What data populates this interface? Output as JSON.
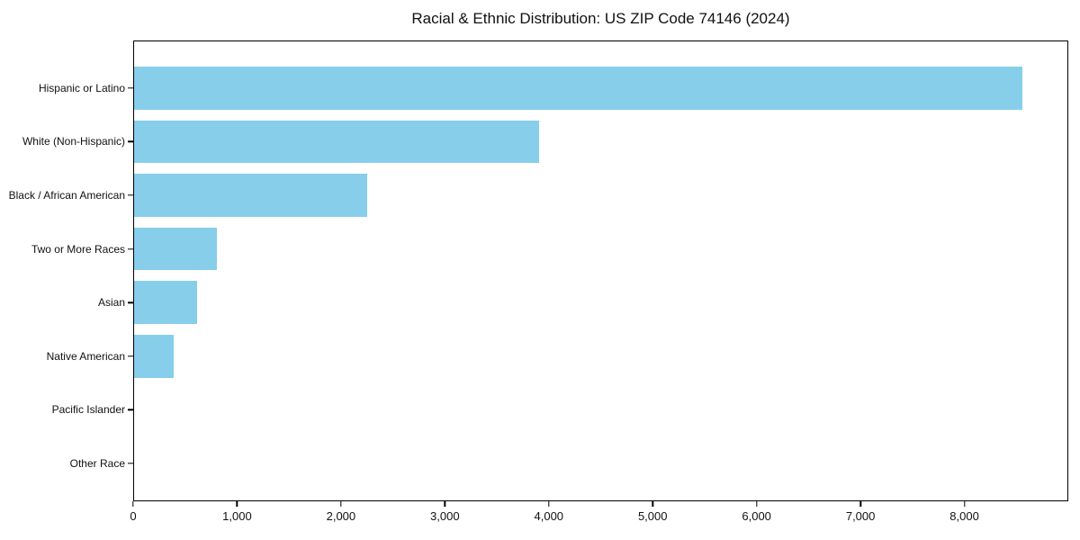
{
  "chart_data": {
    "type": "bar",
    "orientation": "horizontal",
    "title": "Racial & Ethnic Distribution: US ZIP Code 74146 (2024)",
    "categories": [
      "Hispanic or Latino",
      "White (Non-Hispanic)",
      "Black / African American",
      "Two or More Races",
      "Asian",
      "Native American",
      "Pacific Islander",
      "Other Race"
    ],
    "values": [
      8550,
      3900,
      2240,
      800,
      610,
      385,
      0,
      0
    ],
    "bar_color": "#87CEEB",
    "xlabel": "",
    "ylabel": "",
    "xlim": [
      0,
      9000
    ],
    "xticks": [
      0,
      1000,
      2000,
      3000,
      4000,
      5000,
      6000,
      7000,
      8000
    ],
    "xtick_labels": [
      "0",
      "1,000",
      "2,000",
      "3,000",
      "4,000",
      "5,000",
      "6,000",
      "7,000",
      "8,000"
    ],
    "grid": false,
    "legend": "none",
    "text_color": "#111111",
    "frame_color": "#000000"
  }
}
